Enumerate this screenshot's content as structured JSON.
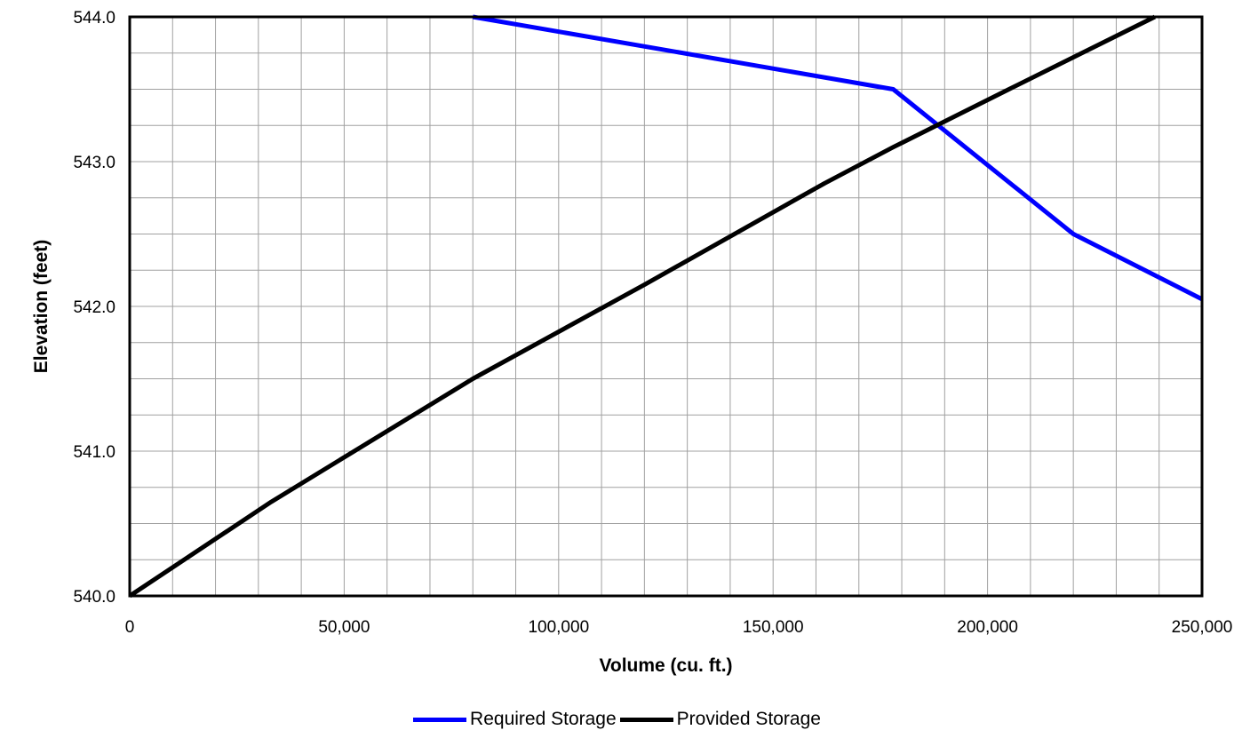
{
  "chart_data": {
    "type": "line",
    "title": "",
    "xlabel": "Volume (cu. ft.)",
    "ylabel": "Elevation (feet)",
    "xlim": [
      0,
      250000
    ],
    "ylim": [
      540.0,
      544.0
    ],
    "x_ticks": [
      0,
      50000,
      100000,
      150000,
      200000,
      250000
    ],
    "x_tick_labels": [
      "0",
      "50,000",
      "100,000",
      "150,000",
      "200,000",
      "250,000"
    ],
    "y_ticks": [
      540.0,
      541.0,
      542.0,
      543.0,
      544.0
    ],
    "y_tick_labels": [
      "540.0",
      "541.0",
      "542.0",
      "543.0",
      "544.0"
    ],
    "x_minor_step": 10000,
    "y_minor_step": 0.25,
    "grid": true,
    "legend_position": "bottom",
    "series": [
      {
        "name": "Required Storage",
        "color": "#0000ff",
        "points": [
          [
            80000,
            544.0
          ],
          [
            178000,
            543.5
          ],
          [
            220000,
            542.5
          ],
          [
            250000,
            542.05
          ]
        ]
      },
      {
        "name": "Provided Storage",
        "color": "#000000",
        "points": [
          [
            0,
            540.0
          ],
          [
            33000,
            540.65
          ],
          [
            80000,
            541.5
          ],
          [
            120000,
            542.15
          ],
          [
            162000,
            542.85
          ],
          [
            178000,
            543.1
          ],
          [
            205000,
            543.5
          ],
          [
            239000,
            544.0
          ]
        ]
      }
    ]
  }
}
